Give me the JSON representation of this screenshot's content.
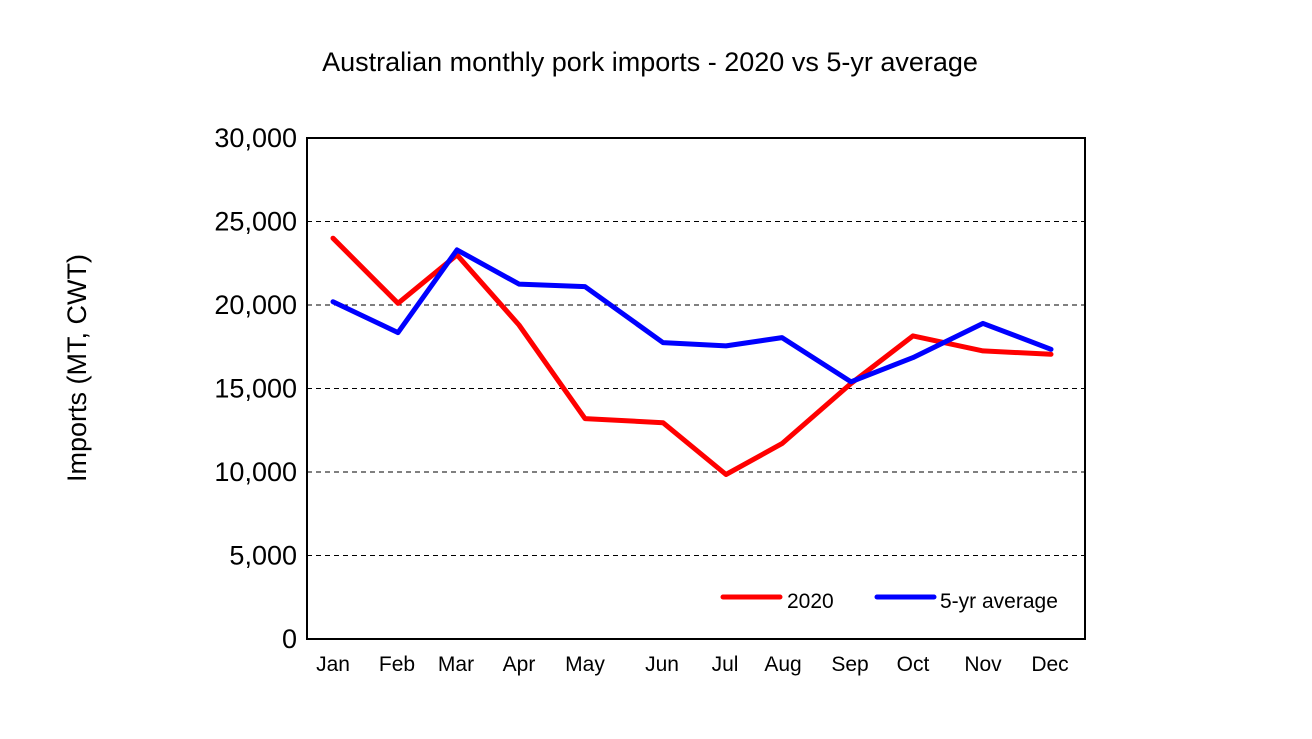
{
  "chart_data": {
    "type": "line",
    "title": "Australian monthly pork imports - 2020 vs 5-yr average",
    "xlabel": "",
    "ylabel": "Imports (MT, CWT)",
    "ylim": [
      0,
      30000
    ],
    "y_ticks": [
      "0",
      "5,000",
      "10,000",
      "15,000",
      "20,000",
      "25,000",
      "30,000"
    ],
    "categories": [
      "Jan",
      "Feb",
      "Mar",
      "Apr",
      "May",
      "Jun",
      "Jul",
      "Aug",
      "Sep",
      "Oct",
      "Nov",
      "Dec"
    ],
    "grid": "horizontal dashed",
    "legend_position": "bottom-right",
    "series": [
      {
        "name": "2020",
        "color": "#ff0000",
        "values": [
          24000,
          20100,
          23000,
          18800,
          13200,
          12950,
          9850,
          11700,
          15300,
          18150,
          17250,
          17050
        ]
      },
      {
        "name": "5-yr average",
        "color": "#0000ff",
        "values": [
          20200,
          18350,
          23300,
          21250,
          21100,
          17750,
          17550,
          18050,
          15400,
          16850,
          18900,
          17350
        ]
      }
    ]
  }
}
